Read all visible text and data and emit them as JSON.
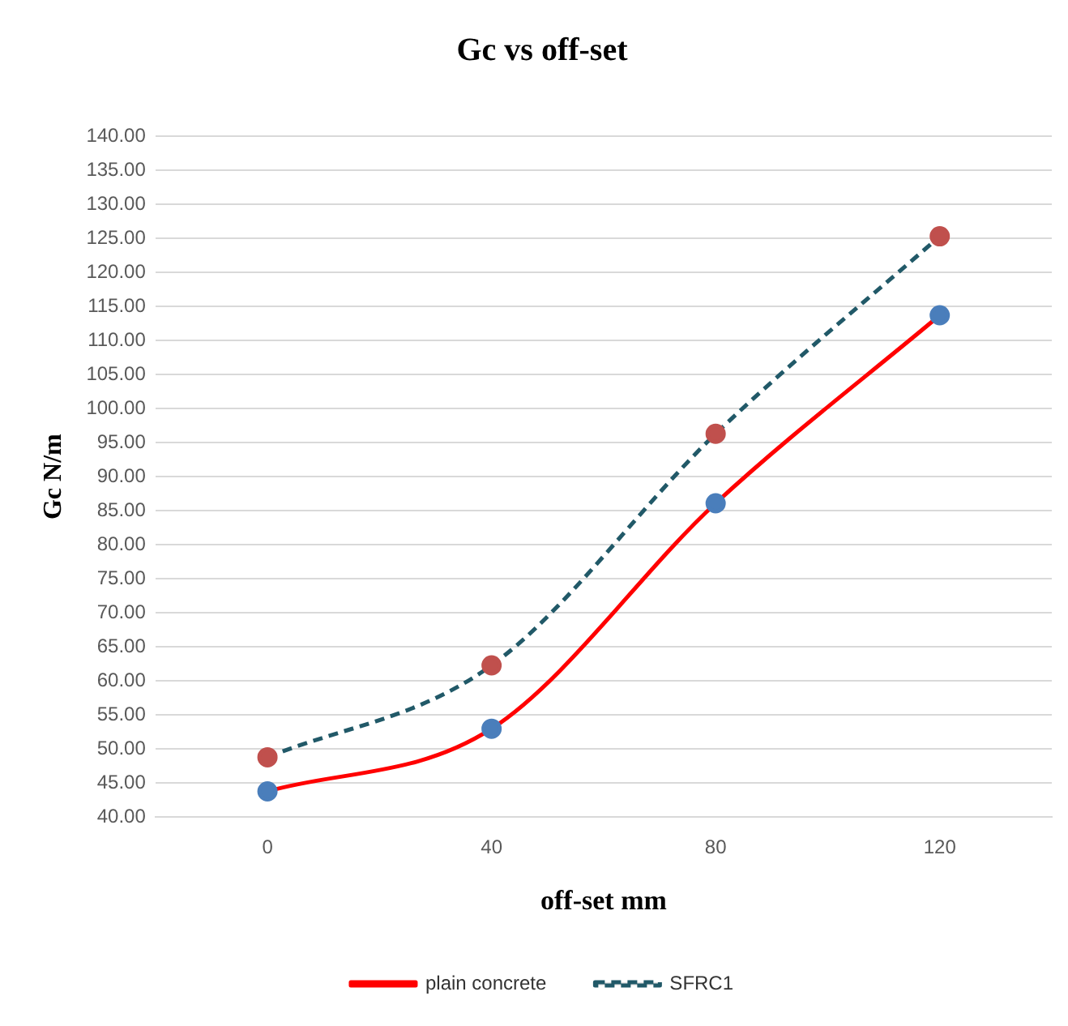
{
  "chart_data": {
    "type": "line",
    "title": "Gc vs off-set",
    "xlabel": "off-set mm",
    "ylabel": "Gc N/m",
    "categories": [
      "0",
      "40",
      "80",
      "120"
    ],
    "series": [
      {
        "name": "plain concrete",
        "color": "#ff0000",
        "values": [
          43.8,
          53.0,
          86.1,
          113.7
        ],
        "line_style": "solid"
      },
      {
        "name": "SFRC1",
        "color": "#215968",
        "values": [
          48.8,
          62.3,
          96.3,
          125.3
        ],
        "line_style": "dashed"
      }
    ],
    "ylim": [
      40,
      140
    ],
    "yticks": [
      {
        "value": 40,
        "label": "40.00"
      },
      {
        "value": 45,
        "label": "45.00"
      },
      {
        "value": 50,
        "label": "50.00"
      },
      {
        "value": 55,
        "label": "55.00"
      },
      {
        "value": 60,
        "label": "60.00"
      },
      {
        "value": 65,
        "label": "65.00"
      },
      {
        "value": 70,
        "label": "70.00"
      },
      {
        "value": 75,
        "label": "75.00"
      },
      {
        "value": 80,
        "label": "80.00"
      },
      {
        "value": 85,
        "label": "85.00"
      },
      {
        "value": 90,
        "label": "90.00"
      },
      {
        "value": 95,
        "label": "95.00"
      },
      {
        "value": 100,
        "label": "100.00"
      },
      {
        "value": 105,
        "label": "105.00"
      },
      {
        "value": 110,
        "label": "110.00"
      },
      {
        "value": 115,
        "label": "115.00"
      },
      {
        "value": 120,
        "label": "120.00"
      },
      {
        "value": 125,
        "label": "125.00"
      },
      {
        "value": 130,
        "label": "130.00"
      },
      {
        "value": 135,
        "label": "135.00"
      },
      {
        "value": 140,
        "label": "140.00"
      }
    ],
    "grid": "y",
    "legend": "bottom",
    "marker": "circle"
  }
}
